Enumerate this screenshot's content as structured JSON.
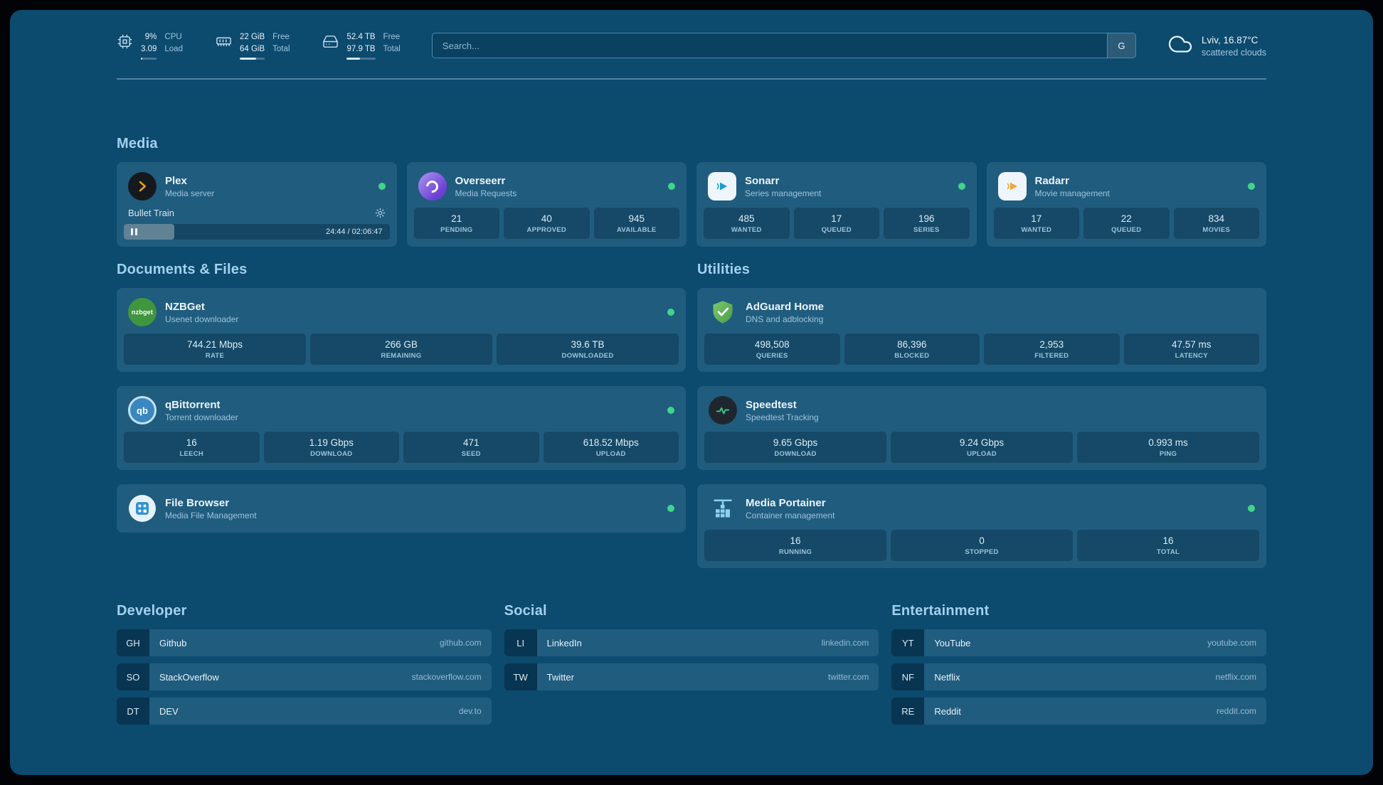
{
  "colors": {
    "background": "#0c4a6e",
    "status_online": "#3fd68a",
    "section_header": "#a3d1ee",
    "plex_accent": "#e5a00d"
  },
  "topbar": {
    "cpu": {
      "icon": "cpu-icon",
      "value1": "9%",
      "value2": "3.09",
      "label1": "CPU",
      "label2": "Load",
      "bar_percent": 9
    },
    "memory": {
      "icon": "memory-icon",
      "value1": "22 GiB",
      "value2": "64 GiB",
      "label1": "Free",
      "label2": "Total",
      "bar_percent": 66
    },
    "disk": {
      "icon": "disk-icon",
      "value1": "52.4 TB",
      "value2": "97.9 TB",
      "label1": "Free",
      "label2": "Total",
      "bar_percent": 46
    },
    "search": {
      "placeholder": "Search...",
      "provider": "G"
    },
    "weather": {
      "icon": "cloud-icon",
      "location": "Lviv, 16.87°C",
      "condition": "scattered clouds"
    }
  },
  "media": {
    "header": "Media",
    "plex": {
      "icon": "plex-icon",
      "title": "Plex",
      "subtitle": "Media server",
      "status": "online",
      "now_playing": "Bullet Train",
      "time_display": "24:44 / 02:06:47",
      "progress_percent": 19
    },
    "overseerr": {
      "icon": "overseerr-icon",
      "title": "Overseerr",
      "subtitle": "Media Requests",
      "status": "online",
      "stats": [
        {
          "value": "21",
          "label": "PENDING"
        },
        {
          "value": "40",
          "label": "APPROVED"
        },
        {
          "value": "945",
          "label": "AVAILABLE"
        }
      ]
    },
    "sonarr": {
      "icon": "sonarr-icon",
      "title": "Sonarr",
      "subtitle": "Series management",
      "status": "online",
      "stats": [
        {
          "value": "485",
          "label": "WANTED"
        },
        {
          "value": "17",
          "label": "QUEUED"
        },
        {
          "value": "196",
          "label": "SERIES"
        }
      ]
    },
    "radarr": {
      "icon": "radarr-icon",
      "title": "Radarr",
      "subtitle": "Movie management",
      "status": "online",
      "stats": [
        {
          "value": "17",
          "label": "WANTED"
        },
        {
          "value": "22",
          "label": "QUEUED"
        },
        {
          "value": "834",
          "label": "MOVIES"
        }
      ]
    }
  },
  "documents": {
    "header": "Documents & Files",
    "nzbget": {
      "icon": "nzbget-icon",
      "icon_text": "nzbget",
      "title": "NZBGet",
      "subtitle": "Usenet downloader",
      "status": "online",
      "stats": [
        {
          "value": "744.21 Mbps",
          "label": "RATE"
        },
        {
          "value": "266 GB",
          "label": "REMAINING"
        },
        {
          "value": "39.6 TB",
          "label": "DOWNLOADED"
        }
      ]
    },
    "qbittorrent": {
      "icon": "qbittorrent-icon",
      "icon_text": "qb",
      "title": "qBittorrent",
      "subtitle": "Torrent downloader",
      "status": "online",
      "stats": [
        {
          "value": "16",
          "label": "LEECH"
        },
        {
          "value": "1.19 Gbps",
          "label": "DOWNLOAD"
        },
        {
          "value": "471",
          "label": "SEED"
        },
        {
          "value": "618.52 Mbps",
          "label": "UPLOAD"
        }
      ]
    },
    "filebrowser": {
      "icon": "filebrowser-icon",
      "title": "File Browser",
      "subtitle": "Media File Management",
      "status": "online"
    }
  },
  "utilities": {
    "header": "Utilities",
    "adguard": {
      "icon": "adguard-shield-icon",
      "title": "AdGuard Home",
      "subtitle": "DNS and adblocking",
      "stats": [
        {
          "value": "498,508",
          "label": "QUERIES"
        },
        {
          "value": "86,396",
          "label": "BLOCKED"
        },
        {
          "value": "2,953",
          "label": "FILTERED"
        },
        {
          "value": "47.57 ms",
          "label": "LATENCY"
        }
      ]
    },
    "speedtest": {
      "icon": "speedtest-icon",
      "title": "Speedtest",
      "subtitle": "Speedtest Tracking",
      "stats": [
        {
          "value": "9.65 Gbps",
          "label": "DOWNLOAD"
        },
        {
          "value": "9.24 Gbps",
          "label": "UPLOAD"
        },
        {
          "value": "0.993 ms",
          "label": "PING"
        }
      ]
    },
    "portainer": {
      "icon": "portainer-icon",
      "title": "Media Portainer",
      "subtitle": "Container management",
      "status": "online",
      "stats": [
        {
          "value": "16",
          "label": "RUNNING"
        },
        {
          "value": "0",
          "label": "STOPPED"
        },
        {
          "value": "16",
          "label": "TOTAL"
        }
      ]
    }
  },
  "bookmarks": [
    {
      "header": "Developer",
      "items": [
        {
          "abbr": "GH",
          "name": "Github",
          "domain": "github.com"
        },
        {
          "abbr": "SO",
          "name": "StackOverflow",
          "domain": "stackoverflow.com"
        },
        {
          "abbr": "DT",
          "name": "DEV",
          "domain": "dev.to"
        }
      ]
    },
    {
      "header": "Social",
      "items": [
        {
          "abbr": "LI",
          "name": "LinkedIn",
          "domain": "linkedin.com"
        },
        {
          "abbr": "TW",
          "name": "Twitter",
          "domain": "twitter.com"
        }
      ]
    },
    {
      "header": "Entertainment",
      "items": [
        {
          "abbr": "YT",
          "name": "YouTube",
          "domain": "youtube.com"
        },
        {
          "abbr": "NF",
          "name": "Netflix",
          "domain": "netflix.com"
        },
        {
          "abbr": "RE",
          "name": "Reddit",
          "domain": "reddit.com"
        }
      ]
    }
  ]
}
